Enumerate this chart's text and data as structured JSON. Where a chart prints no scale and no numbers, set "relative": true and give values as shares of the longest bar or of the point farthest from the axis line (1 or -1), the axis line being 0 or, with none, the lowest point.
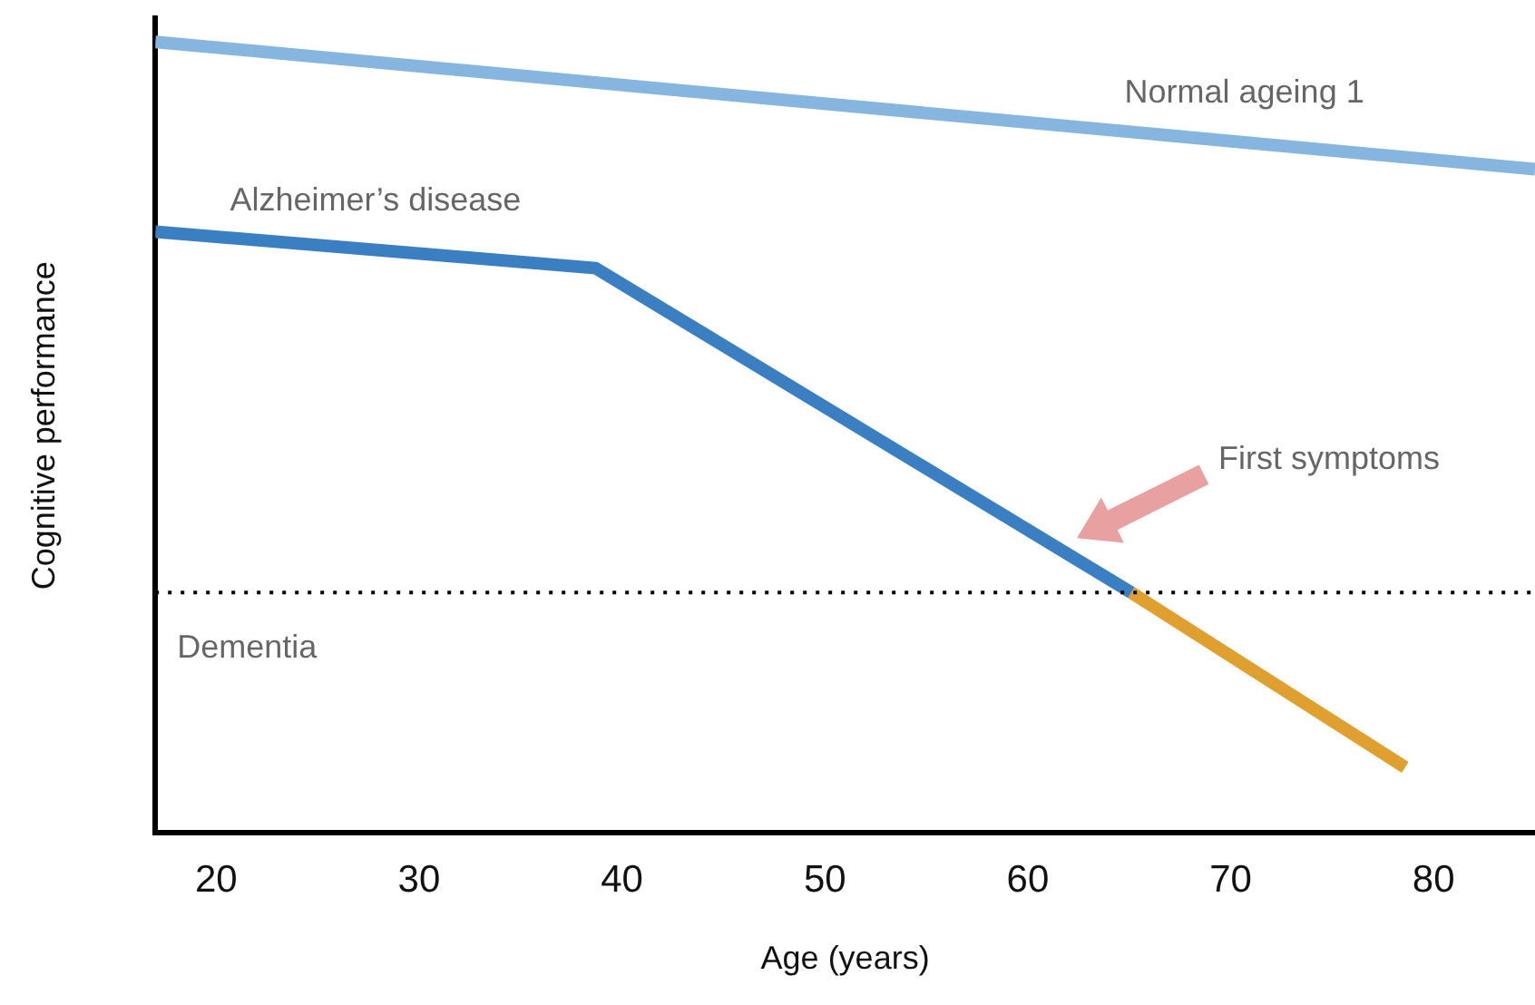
{
  "chart_data": {
    "type": "line",
    "xlabel": "Age (years)",
    "ylabel": "Cognitive performance",
    "relative": true,
    "xlim": [
      17,
      85
    ],
    "xticks": [
      20,
      30,
      40,
      50,
      60,
      70,
      80
    ],
    "tick_labels": "x",
    "grid": false,
    "legend": false,
    "marker": "none",
    "line_style": "solid",
    "series": [
      {
        "name": "Normal ageing 1",
        "color": "#86b6e0",
        "x": [
          17,
          85
        ],
        "values": [
          1,
          0.839
        ]
      },
      {
        "name": "Alzheimer’s disease",
        "color": "#3a7fc1",
        "x": [
          17,
          38.7,
          65.1
        ],
        "values": [
          0.76,
          0.714,
          0.304
        ]
      },
      {
        "color": "#e0a030",
        "x": [
          65.1,
          78.6
        ],
        "values": [
          0.304,
          0.083
        ]
      }
    ],
    "ref_lines": [
      {
        "axis": "y",
        "value": 0.304,
        "label": "Dementia",
        "line_style": "dotted",
        "color": "#000000"
      }
    ],
    "annotations": [
      "First symptoms"
    ]
  }
}
